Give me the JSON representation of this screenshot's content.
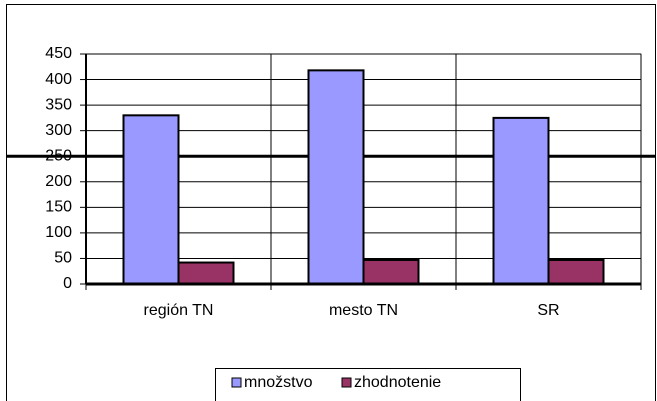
{
  "chart_data": {
    "type": "bar",
    "categories": [
      "región TN",
      "mesto TN",
      "SR"
    ],
    "series": [
      {
        "name": "množstvo",
        "color": "#9999ff",
        "values": [
          330,
          418,
          325
        ]
      },
      {
        "name": "zhodnotenie",
        "color": "#993366",
        "values": [
          42,
          47,
          47
        ]
      }
    ],
    "ylim": [
      0,
      450
    ],
    "yticks": [
      0,
      50,
      100,
      150,
      200,
      250,
      300,
      350,
      400,
      450
    ],
    "grid": true,
    "reference_line": 250,
    "legend": "bottom"
  }
}
